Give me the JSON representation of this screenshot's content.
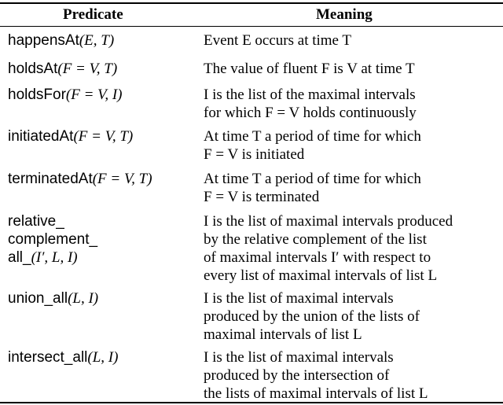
{
  "header": {
    "predicate": "Predicate",
    "meaning": "Meaning"
  },
  "rows": [
    {
      "name": "happensAt",
      "args": "(E, T)",
      "meaning": [
        "Event E occurs at time T"
      ]
    },
    {
      "name": "holdsAt",
      "args": "(F = V, T)",
      "meaning": [
        "The value of fluent F is V at time T"
      ]
    },
    {
      "name": "holdsFor",
      "args": "(F = V, I)",
      "meaning": [
        "I is the list of the maximal intervals",
        "for which F = V holds continuously"
      ]
    },
    {
      "name": "initiatedAt",
      "args": "(F = V, T)",
      "meaning": [
        "At time T a period of time for which",
        "F = V is initiated"
      ]
    },
    {
      "name": "terminatedAt",
      "args": "(F = V, T)",
      "meaning": [
        "At time T a period of time for which",
        "F = V is terminated"
      ]
    },
    {
      "name_lines": [
        "relative_",
        "complement_",
        "all_"
      ],
      "args": "(I′, L, I)",
      "meaning": [
        "I is the list of maximal intervals produced",
        "by the relative complement of the list",
        "of maximal intervals I′ with respect to",
        "every list of maximal intervals of list L"
      ]
    },
    {
      "name": "union_all",
      "args": "(L, I)",
      "meaning": [
        "I is the list of maximal intervals",
        "produced by the union of the lists of",
        "maximal intervals of list L"
      ]
    },
    {
      "name": "intersect_all",
      "args": "(L, I)",
      "meaning": [
        "I is the list of maximal intervals",
        "produced by the intersection of",
        "the lists of maximal intervals of list L"
      ]
    }
  ]
}
